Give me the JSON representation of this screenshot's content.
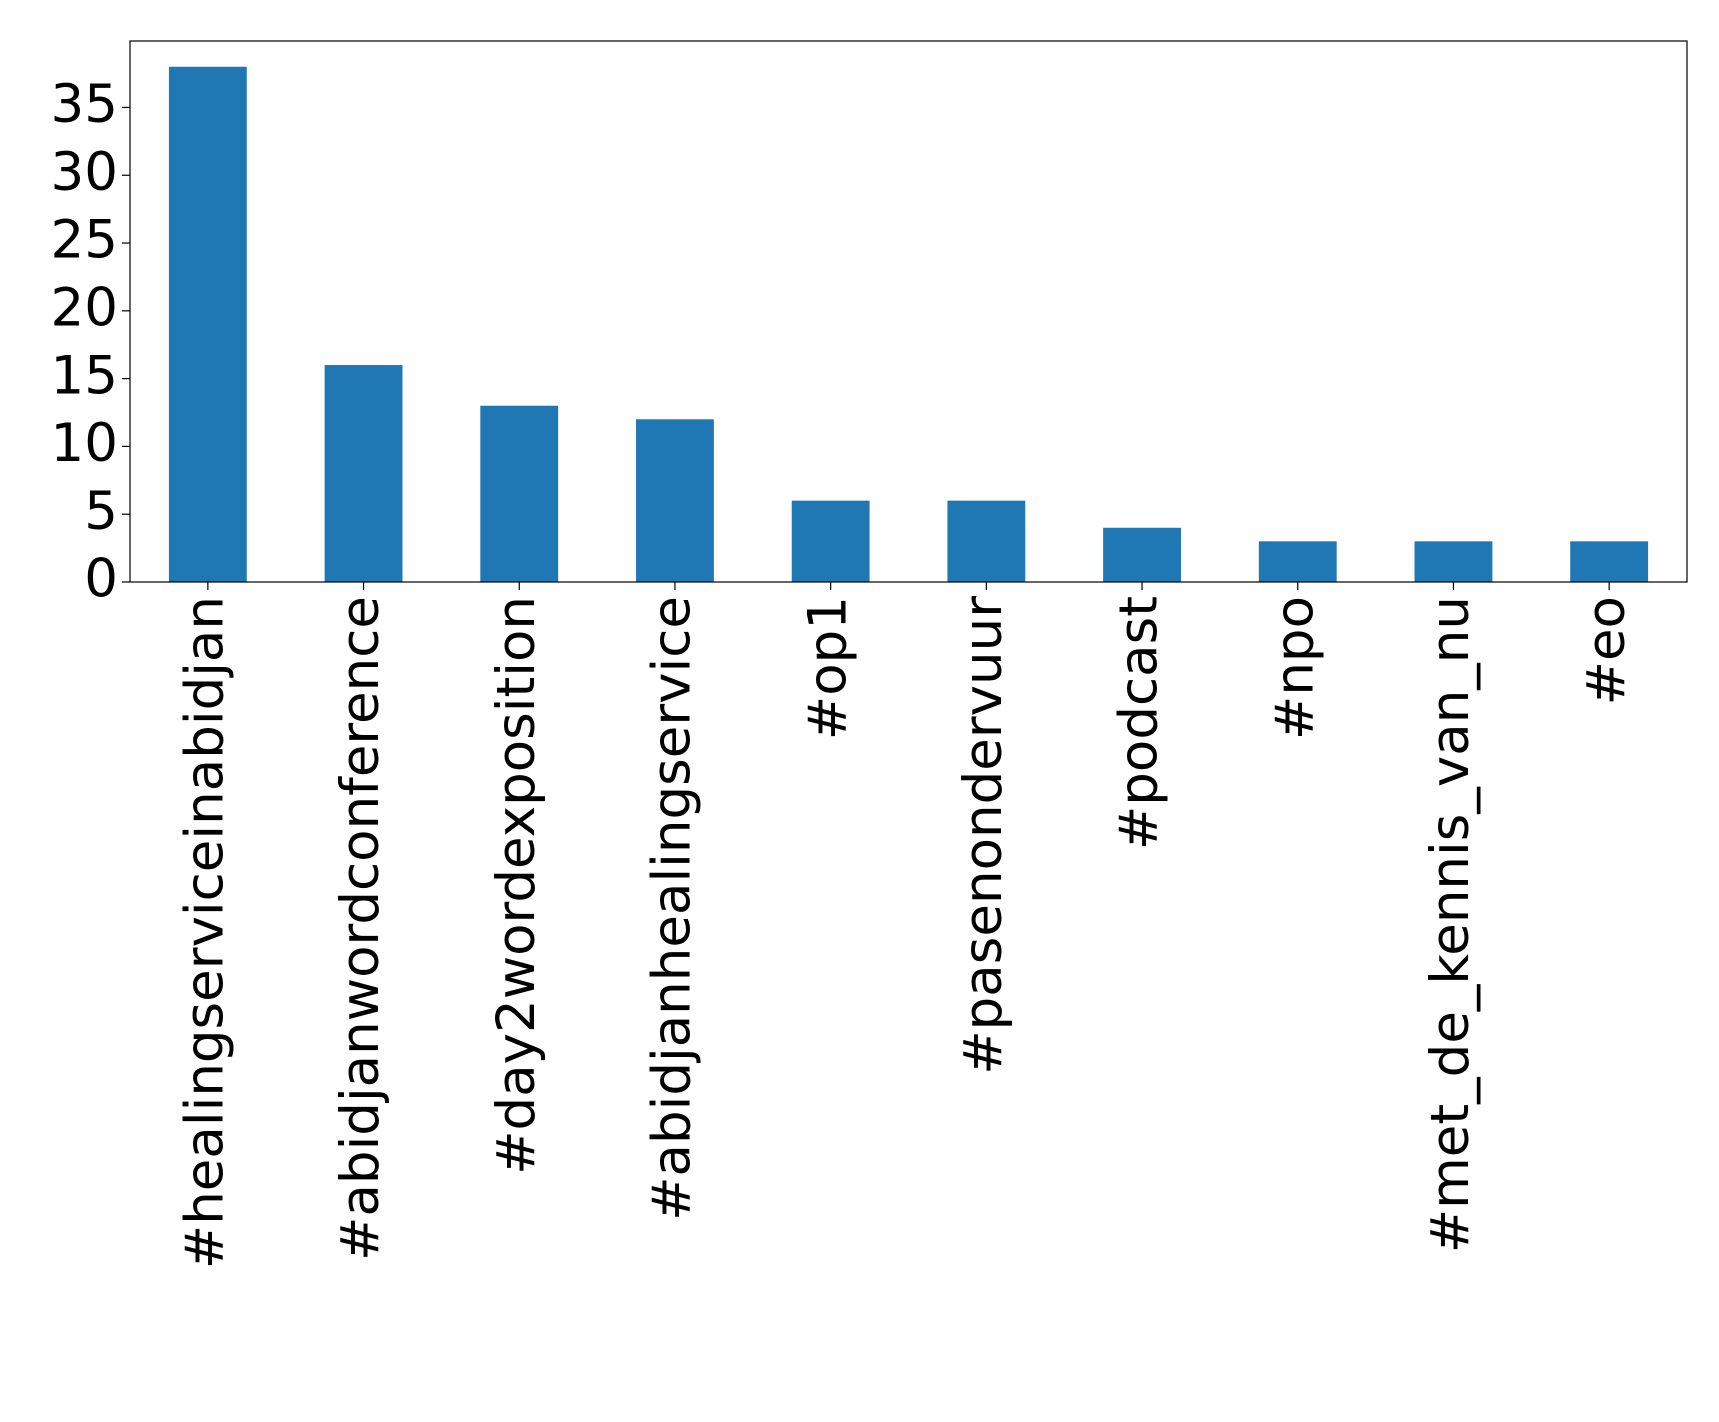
{
  "chart_data": {
    "type": "bar",
    "categories": [
      "#healingserviceinabidjan",
      "#abidjanwordconference",
      "#day2wordexposition",
      "#abidjanhealingservice",
      "#op1",
      "#pasenondervuur",
      "#podcast",
      "#npo",
      "#met_de_kennis_van_nu",
      "#eo"
    ],
    "values": [
      38,
      16,
      13,
      12,
      6,
      6,
      4,
      3,
      3,
      3
    ],
    "color": "#1f77b4",
    "ylim": [
      0,
      39.9
    ],
    "yticks": [
      0,
      5,
      10,
      15,
      20,
      25,
      30,
      35
    ],
    "grid": false
  }
}
